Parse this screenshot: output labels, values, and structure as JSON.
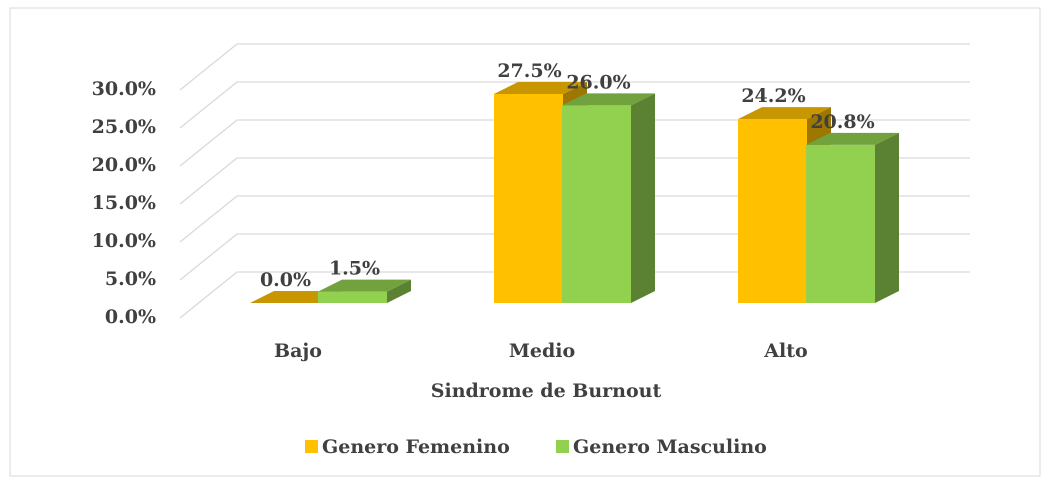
{
  "chart_data": {
    "type": "bar3d",
    "x_label": "Sindrome de Burnout",
    "categories": [
      "Bajo",
      "Medio",
      "Alto"
    ],
    "series": [
      {
        "name": "Genero Femenino",
        "color": "#ffc000",
        "values": [
          0.0,
          27.5,
          24.2
        ],
        "value_labels": [
          "0.0%",
          "27.5%",
          "24.2%"
        ]
      },
      {
        "name": "Genero Masculino",
        "color": "#92d050",
        "values": [
          1.5,
          26.0,
          20.8
        ],
        "value_labels": [
          "1.5%",
          "26.0%",
          "20.8%"
        ]
      }
    ],
    "ylim": [
      0,
      30
    ],
    "yticks": [
      {
        "value": 0,
        "label": "0.0%"
      },
      {
        "value": 5,
        "label": "5.0%"
      },
      {
        "value": 10,
        "label": "10.0%"
      },
      {
        "value": 15,
        "label": "15.0%"
      },
      {
        "value": 20,
        "label": "20.0%"
      },
      {
        "value": 25,
        "label": "25.0%"
      },
      {
        "value": 30,
        "label": "30.0%"
      }
    ],
    "grid": true,
    "legend": "bottom"
  }
}
